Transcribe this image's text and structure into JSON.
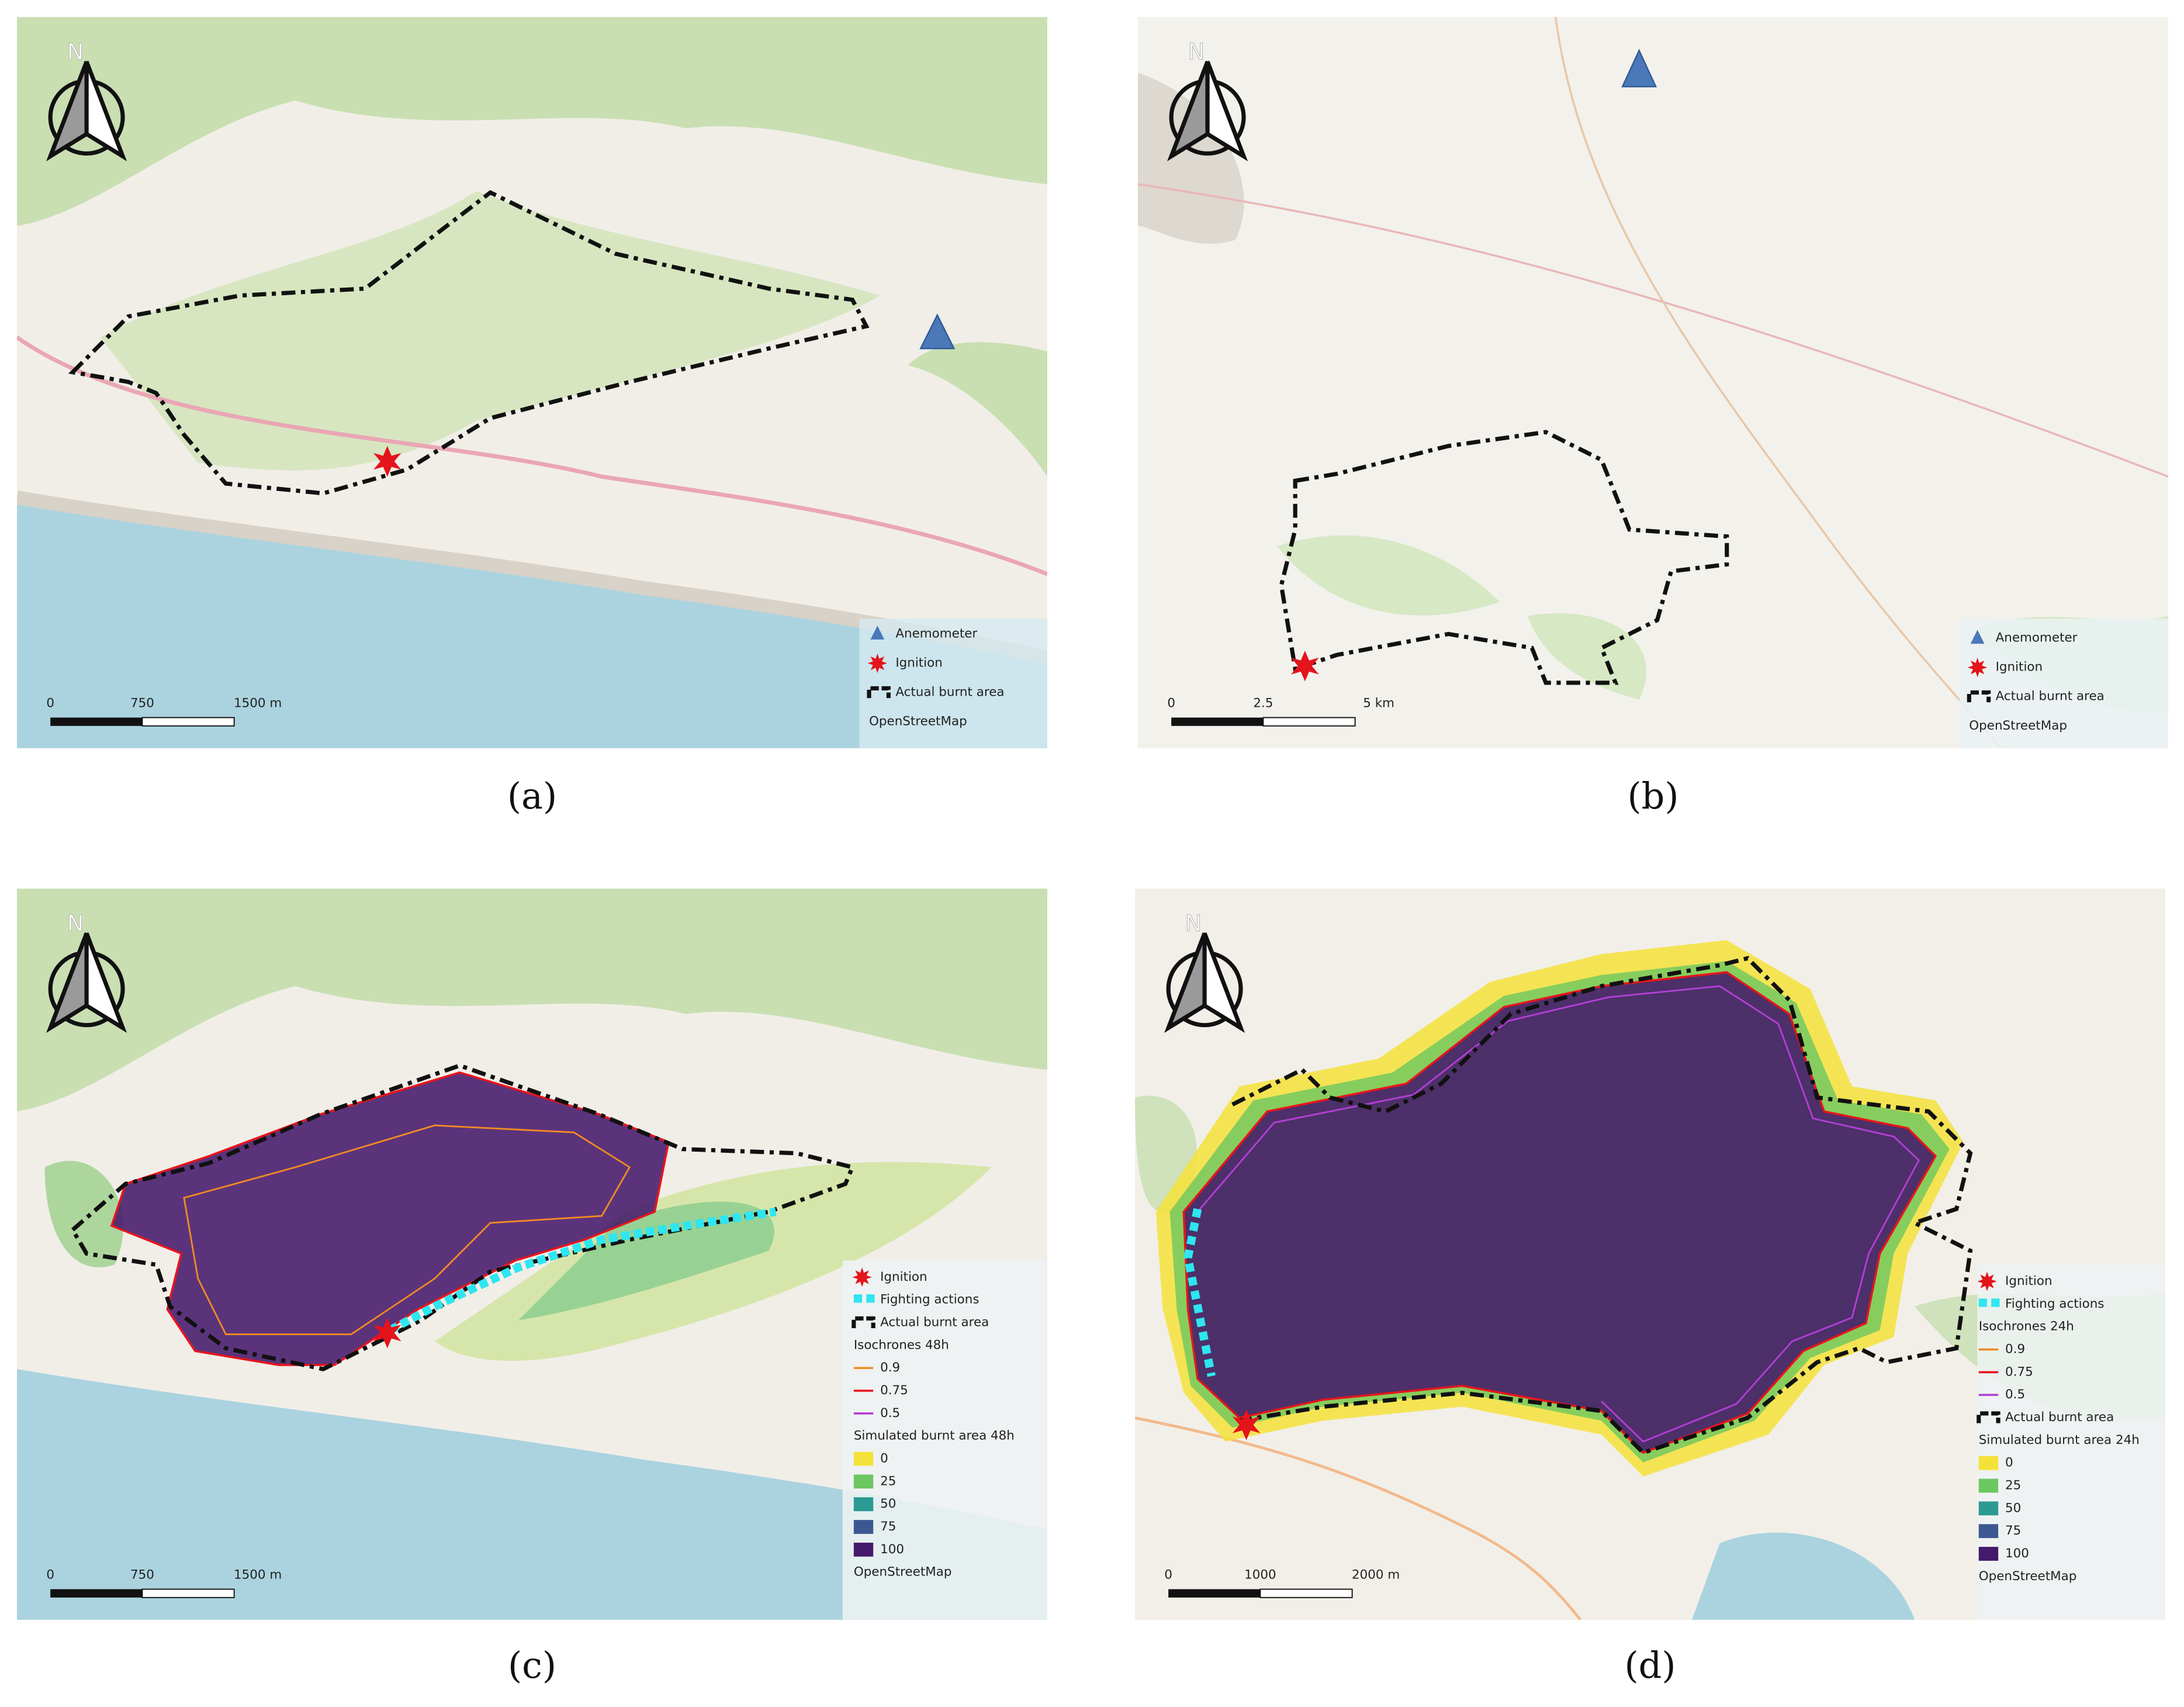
{
  "panels": [
    {
      "caption": "(a)",
      "north": "N",
      "legend": [
        {
          "label": "Anemometer",
          "symbol": "triangle",
          "color": "#4a78b8"
        },
        {
          "label": "Ignition",
          "symbol": "star",
          "color": "#e4141b"
        },
        {
          "label": "Actual burnt area",
          "symbol": "dash",
          "color": "#111111"
        },
        {
          "label": "OpenStreetMap"
        }
      ],
      "scale_bar": [
        "0",
        "750",
        "1500 m"
      ]
    },
    {
      "caption": "(b)",
      "north": "N",
      "legend": [
        {
          "label": "Anemometer",
          "symbol": "triangle",
          "color": "#4a78b8"
        },
        {
          "label": "Ignition",
          "symbol": "star",
          "color": "#e4141b"
        },
        {
          "label": "Actual burnt area",
          "symbol": "dash",
          "color": "#111111"
        },
        {
          "label": "OpenStreetMap"
        }
      ],
      "scale_bar": [
        "0",
        "2.5",
        "5 km"
      ]
    },
    {
      "caption": "(c)",
      "north": "N",
      "legend": [
        {
          "label": "Ignition",
          "symbol": "star",
          "color": "#e4141b"
        },
        {
          "label": "Fighting actions",
          "symbol": "squares",
          "color": "#2ee6f0"
        },
        {
          "label": "Actual burnt area",
          "symbol": "dash",
          "color": "#111111"
        },
        {
          "label": "Isochrones 48h"
        },
        {
          "label": "0.9",
          "symbol": "line",
          "color": "#f08a24"
        },
        {
          "label": "0.75",
          "symbol": "line",
          "color": "#e8141b"
        },
        {
          "label": "0.5",
          "symbol": "line",
          "color": "#b23fd6"
        },
        {
          "label": "Simulated burnt area 48h"
        },
        {
          "label": "0",
          "symbol": "swatch",
          "color": "#f4e23a"
        },
        {
          "label": "25",
          "symbol": "swatch",
          "color": "#6cc760"
        },
        {
          "label": "50",
          "symbol": "swatch",
          "color": "#2a9a93"
        },
        {
          "label": "75",
          "symbol": "swatch",
          "color": "#3c5890"
        },
        {
          "label": "100",
          "symbol": "swatch",
          "color": "#45196b"
        },
        {
          "label": "OpenStreetMap"
        }
      ],
      "scale_bar": [
        "0",
        "750",
        "1500 m"
      ]
    },
    {
      "caption": "(d)",
      "north": "N",
      "legend": [
        {
          "label": "Ignition",
          "symbol": "star",
          "color": "#e4141b"
        },
        {
          "label": "Fighting actions",
          "symbol": "squares",
          "color": "#2ee6f0"
        },
        {
          "label": "Isochrones 24h"
        },
        {
          "label": "0.9",
          "symbol": "line",
          "color": "#f08a24"
        },
        {
          "label": "0.75",
          "symbol": "line",
          "color": "#e8141b"
        },
        {
          "label": "0.5",
          "symbol": "line",
          "color": "#b23fd6"
        },
        {
          "label": "Actual burnt area",
          "symbol": "dash",
          "color": "#111111"
        },
        {
          "label": "Simulated burnt area 24h"
        },
        {
          "label": "0",
          "symbol": "swatch",
          "color": "#f4e23a"
        },
        {
          "label": "25",
          "symbol": "swatch",
          "color": "#6cc760"
        },
        {
          "label": "50",
          "symbol": "swatch",
          "color": "#2a9a93"
        },
        {
          "label": "75",
          "symbol": "swatch",
          "color": "#3c5890"
        },
        {
          "label": "100",
          "symbol": "swatch",
          "color": "#45196b"
        },
        {
          "label": "OpenStreetMap"
        }
      ],
      "scale_bar": [
        "0",
        "1000",
        "2000 m"
      ]
    }
  ]
}
